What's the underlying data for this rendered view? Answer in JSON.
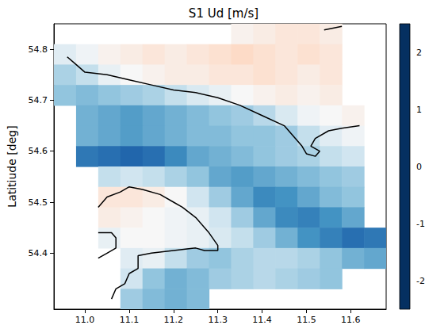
{
  "chart_data": {
    "type": "heatmap",
    "title": "S1 Ud [m/s]",
    "ylabel": "Latitiude [deg]",
    "grid": false,
    "xlim": [
      10.93,
      11.68
    ],
    "ylim": [
      54.29,
      54.85
    ],
    "xticks": [
      {
        "value": 11.0,
        "label": "11.0"
      },
      11.1,
      11.2,
      11.3,
      11.4,
      11.5,
      11.6
    ],
    "yticks": [
      54.4,
      54.5,
      54.6,
      54.7,
      54.8
    ],
    "cells": {
      "lon": [
        10.955,
        11.005,
        11.055,
        11.105,
        11.155,
        11.205,
        11.255,
        11.305,
        11.355,
        11.405,
        11.455,
        11.505,
        11.555,
        11.605,
        11.655
      ],
      "lat": [
        54.83,
        54.79,
        54.75,
        54.71,
        54.67,
        54.63,
        54.59,
        54.55,
        54.51,
        54.47,
        54.43,
        54.39,
        54.35,
        54.31
      ],
      "values": [
        [
          null,
          null,
          null,
          null,
          null,
          null,
          null,
          null,
          0.1,
          0.2,
          0.3,
          0.3,
          0.2,
          null,
          null
        ],
        [
          -0.3,
          -0.1,
          0.1,
          0.2,
          0.3,
          0.2,
          0.3,
          0.4,
          0.5,
          0.4,
          0.3,
          0.4,
          0.3,
          null,
          null
        ],
        [
          -0.8,
          -0.6,
          -0.2,
          0.0,
          0.1,
          0.2,
          0.2,
          0.3,
          0.3,
          0.4,
          0.3,
          0.2,
          0.3,
          null,
          null
        ],
        [
          -1.0,
          -1.1,
          -1.0,
          -0.9,
          -0.8,
          -0.6,
          -0.4,
          -0.2,
          0.0,
          0.1,
          0.2,
          0.1,
          0.2,
          null,
          null
        ],
        [
          null,
          -1.2,
          -1.3,
          -1.4,
          -1.3,
          -1.2,
          -1.1,
          -1.0,
          -0.9,
          -0.7,
          -0.4,
          -0.1,
          0.0,
          0.1,
          null
        ],
        [
          null,
          -1.2,
          -1.3,
          -1.4,
          -1.3,
          -1.2,
          -1.1,
          -1.1,
          -1.0,
          -1.0,
          -0.9,
          -0.6,
          -0.3,
          -0.1,
          null
        ],
        [
          null,
          -1.8,
          -1.9,
          -2.0,
          -1.9,
          -1.6,
          -1.3,
          -1.2,
          -1.1,
          -1.0,
          -0.9,
          -0.8,
          -0.6,
          -0.5,
          null
        ],
        [
          null,
          null,
          -0.6,
          -0.5,
          -0.6,
          -0.8,
          -1.0,
          -1.3,
          -1.4,
          -1.3,
          -1.2,
          -1.1,
          -1.0,
          -0.9,
          null
        ],
        [
          null,
          null,
          0.3,
          0.3,
          0.2,
          0.0,
          -0.5,
          -0.9,
          -1.3,
          -1.6,
          -1.5,
          -1.3,
          -1.1,
          -1.0,
          null
        ],
        [
          null,
          null,
          0.2,
          0.1,
          0.0,
          -0.1,
          -0.2,
          -0.5,
          -0.9,
          -1.3,
          -1.6,
          -1.7,
          -1.5,
          -1.3,
          null
        ],
        [
          null,
          null,
          -0.2,
          0.0,
          0.0,
          -0.1,
          -0.2,
          -0.4,
          -0.6,
          -0.9,
          -1.2,
          -1.5,
          -1.7,
          -1.9,
          -1.8
        ],
        [
          null,
          null,
          null,
          -0.3,
          -0.2,
          -0.6,
          -0.9,
          -1.0,
          -0.8,
          -0.7,
          -0.7,
          -0.8,
          -1.0,
          -1.2,
          -1.3
        ],
        [
          null,
          null,
          null,
          -0.5,
          -1.0,
          -1.2,
          -1.1,
          -0.9,
          -0.8,
          -0.7,
          -0.8,
          -0.9,
          -1.0,
          null,
          null
        ],
        [
          null,
          null,
          null,
          -0.9,
          -1.1,
          -1.2,
          -1.1,
          null,
          null,
          null,
          null,
          null,
          null,
          null,
          null
        ]
      ]
    },
    "colorbar": {
      "range": [
        -2.5,
        2.5
      ],
      "ticks": [
        -2,
        -1,
        0,
        1,
        2
      ]
    },
    "coastlines": [
      [
        [
          10.96,
          54.785
        ],
        [
          10.98,
          54.77
        ],
        [
          11.0,
          54.755
        ],
        [
          11.05,
          54.75
        ],
        [
          11.1,
          54.74
        ],
        [
          11.15,
          54.73
        ],
        [
          11.2,
          54.72
        ],
        [
          11.25,
          54.715
        ],
        [
          11.3,
          54.705
        ],
        [
          11.35,
          54.69
        ],
        [
          11.4,
          54.67
        ],
        [
          11.45,
          54.65
        ],
        [
          11.49,
          54.61
        ],
        [
          11.5,
          54.595
        ],
        [
          11.52,
          54.59
        ],
        [
          11.53,
          54.6
        ],
        [
          11.51,
          54.61
        ],
        [
          11.52,
          54.625
        ],
        [
          11.55,
          54.64
        ],
        [
          11.58,
          54.645
        ],
        [
          11.62,
          54.65
        ]
      ],
      [
        [
          11.54,
          54.838
        ],
        [
          11.58,
          54.845
        ]
      ],
      [
        [
          11.03,
          54.49
        ],
        [
          11.05,
          54.51
        ],
        [
          11.08,
          54.52
        ],
        [
          11.1,
          54.53
        ],
        [
          11.13,
          54.525
        ],
        [
          11.17,
          54.515
        ],
        [
          11.2,
          54.5
        ],
        [
          11.22,
          54.49
        ],
        [
          11.25,
          54.47
        ],
        [
          11.28,
          54.44
        ],
        [
          11.3,
          54.415
        ],
        [
          11.3,
          54.405
        ],
        [
          11.27,
          54.405
        ],
        [
          11.25,
          54.41
        ],
        [
          11.2,
          54.405
        ],
        [
          11.15,
          54.4
        ],
        [
          11.12,
          54.395
        ],
        [
          11.12,
          54.37
        ],
        [
          11.1,
          54.36
        ],
        [
          11.09,
          54.34
        ],
        [
          11.07,
          54.33
        ],
        [
          11.06,
          54.31
        ]
      ],
      [
        [
          11.03,
          54.44
        ],
        [
          11.06,
          54.44
        ],
        [
          11.07,
          54.43
        ],
        [
          11.07,
          54.41
        ],
        [
          11.05,
          54.4
        ],
        [
          11.03,
          54.39
        ]
      ]
    ]
  }
}
